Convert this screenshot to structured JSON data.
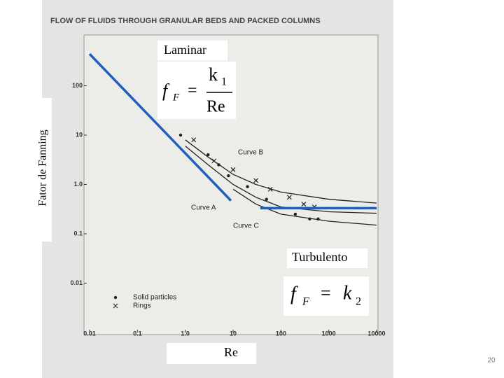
{
  "chart_data": {
    "type": "line",
    "title": "FLOW OF FLUIDS THROUGH GRANULAR BEDS AND PACKED COLUMNS",
    "x_label": "Re",
    "y_label": "Fator de Fanning",
    "log_x": true,
    "log_y": true,
    "xlim": [
      0.01,
      10000
    ],
    "ylim": [
      0.001,
      1000
    ],
    "xticks": [
      0.01,
      0.1,
      {
        "value": 1,
        "label": "1.0"
      },
      10,
      100,
      1000,
      10000
    ],
    "yticks": [
      100,
      10,
      {
        "value": 1,
        "label": "1.0"
      },
      0.1,
      0.01
    ],
    "series": [
      {
        "name": "Curve A",
        "style": "line",
        "color": "#222222",
        "x": [
          1,
          3,
          10,
          30,
          100,
          1000,
          10000
        ],
        "values": [
          6,
          2.5,
          1.0,
          0.55,
          0.35,
          0.28,
          0.26
        ]
      },
      {
        "name": "Curve B",
        "style": "line",
        "color": "#222222",
        "x": [
          1,
          3,
          10,
          30,
          100,
          1000,
          10000
        ],
        "values": [
          8,
          3.6,
          1.6,
          1.0,
          0.7,
          0.5,
          0.42
        ]
      },
      {
        "name": "Curve C",
        "style": "line",
        "color": "#222222",
        "x": [
          10,
          30,
          100,
          1000,
          10000
        ],
        "values": [
          0.8,
          0.4,
          0.25,
          0.18,
          0.15
        ]
      },
      {
        "name": "Solid particles",
        "style": "markers",
        "marker": "circle",
        "color": "#222222",
        "x": [
          0.8,
          3,
          5,
          8,
          20,
          50,
          200,
          400,
          600
        ],
        "values": [
          10,
          4,
          2.5,
          1.5,
          0.9,
          0.5,
          0.25,
          0.2,
          0.2
        ]
      },
      {
        "name": "Rings",
        "style": "markers",
        "marker": "x",
        "color": "#222222",
        "x": [
          1.5,
          4,
          10,
          30,
          60,
          150,
          300,
          500
        ],
        "values": [
          8,
          3,
          2,
          1.2,
          0.8,
          0.55,
          0.4,
          0.35
        ]
      }
    ],
    "overlays": [
      {
        "color": "#1f5fbf",
        "x": [
          0.01,
          9
        ],
        "values": [
          440,
          0.47
        ]
      },
      {
        "color": "#1f5fbf",
        "x": [
          37,
          10000
        ],
        "values": [
          0.33,
          0.33
        ]
      }
    ],
    "annotations": {
      "laminar": "Laminar",
      "turbulent": "Turbulento",
      "laminar_formula": {
        "lhs": "f",
        "lhs_sub": "F",
        "eq": "=",
        "num": "k",
        "num_sub": "1",
        "den": "Re"
      },
      "turbulent_formula": {
        "lhs": "f",
        "lhs_sub": "F",
        "eq": "=",
        "rhs": "k",
        "rhs_sub": "2"
      }
    },
    "page_number": "20"
  }
}
